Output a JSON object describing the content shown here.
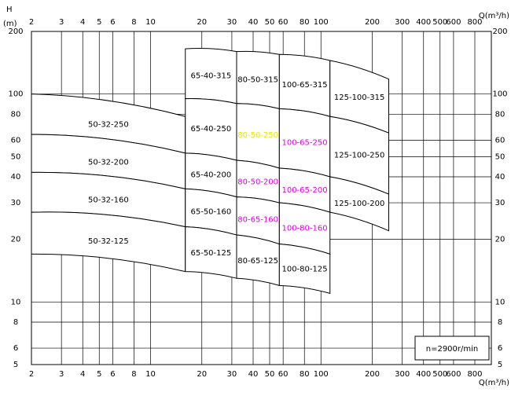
{
  "chart_data": {
    "type": "pump-range",
    "y_label": "H",
    "y_unit": "(m)",
    "x_label": "Q(m³/h)",
    "note": "n=2900r/min",
    "xscale": "log",
    "yscale": "log",
    "grid": true,
    "xlim": [
      2,
      1000
    ],
    "ylim": [
      5,
      200
    ],
    "xticks": [
      2,
      3,
      4,
      5,
      6,
      8,
      10,
      20,
      30,
      40,
      50,
      60,
      80,
      100,
      200,
      300,
      400,
      500,
      600,
      800
    ],
    "yticks": [
      5,
      6,
      8,
      10,
      20,
      30,
      40,
      50,
      60,
      80,
      100,
      200
    ],
    "regions": [
      {
        "name": "65-40-315",
        "color": "#000000",
        "q": [
          16,
          32
        ],
        "h_left": [
          95,
          165
        ],
        "h_right": [
          90,
          160
        ]
      },
      {
        "name": "80-50-315",
        "color": "#000000",
        "q": [
          32,
          57
        ],
        "h_left": [
          90,
          160
        ],
        "h_right": [
          85,
          155
        ]
      },
      {
        "name": "100-65-315",
        "color": "#000000",
        "q": [
          57,
          113
        ],
        "h_left": [
          85,
          155
        ],
        "h_right": [
          78,
          145
        ]
      },
      {
        "name": "125-100-315",
        "color": "#000000",
        "q": [
          113,
          250
        ],
        "h_left": [
          78,
          145
        ],
        "h_right": [
          65,
          118
        ]
      },
      {
        "name": "50-32-250",
        "color": "#000000",
        "q": [
          2,
          16
        ],
        "h_left": [
          64,
          100
        ],
        "h_right": [
          52,
          78
        ]
      },
      {
        "name": "65-40-250",
        "color": "#000000",
        "q": [
          16,
          32
        ],
        "h_left": [
          52,
          95
        ],
        "h_right": [
          48,
          90
        ]
      },
      {
        "name": "80-50-250",
        "color": "#e8e800",
        "q": [
          32,
          57
        ],
        "h_left": [
          48,
          90
        ],
        "h_right": [
          44,
          85
        ]
      },
      {
        "name": "100-65-250",
        "color": "#e000e0",
        "q": [
          57,
          113
        ],
        "h_left": [
          44,
          85
        ],
        "h_right": [
          40,
          78
        ]
      },
      {
        "name": "125-100-250",
        "color": "#000000",
        "q": [
          113,
          250
        ],
        "h_left": [
          40,
          78
        ],
        "h_right": [
          33,
          65
        ]
      },
      {
        "name": "50-32-200",
        "color": "#000000",
        "q": [
          2,
          16
        ],
        "h_left": [
          42,
          64
        ],
        "h_right": [
          35,
          52
        ]
      },
      {
        "name": "65-40-200",
        "color": "#000000",
        "q": [
          16,
          32
        ],
        "h_left": [
          35,
          52
        ],
        "h_right": [
          32,
          48
        ]
      },
      {
        "name": "80-50-200",
        "color": "#e000e0",
        "q": [
          32,
          57
        ],
        "h_left": [
          32,
          48
        ],
        "h_right": [
          30,
          44
        ]
      },
      {
        "name": "100-65-200",
        "color": "#e000e0",
        "q": [
          57,
          113
        ],
        "h_left": [
          30,
          44
        ],
        "h_right": [
          27,
          40
        ]
      },
      {
        "name": "125-100-200",
        "color": "#000000",
        "q": [
          113,
          250
        ],
        "h_left": [
          27,
          40
        ],
        "h_right": [
          22,
          33
        ]
      },
      {
        "name": "50-32-160",
        "color": "#000000",
        "q": [
          2,
          16
        ],
        "h_left": [
          27,
          42
        ],
        "h_right": [
          23,
          35
        ]
      },
      {
        "name": "65-50-160",
        "color": "#000000",
        "q": [
          16,
          32
        ],
        "h_left": [
          23,
          35
        ],
        "h_right": [
          21,
          32
        ]
      },
      {
        "name": "80-65-160",
        "color": "#e000e0",
        "q": [
          32,
          57
        ],
        "h_left": [
          21,
          32
        ],
        "h_right": [
          19,
          30
        ]
      },
      {
        "name": "100-80-160",
        "color": "#e000e0",
        "q": [
          57,
          113
        ],
        "h_left": [
          19,
          30
        ],
        "h_right": [
          17,
          27
        ]
      },
      {
        "name": "50-32-125",
        "color": "#000000",
        "q": [
          2,
          16
        ],
        "h_left": [
          17,
          27
        ],
        "h_right": [
          14,
          23
        ]
      },
      {
        "name": "65-50-125",
        "color": "#000000",
        "q": [
          16,
          32
        ],
        "h_left": [
          14,
          23
        ],
        "h_right": [
          13,
          21
        ]
      },
      {
        "name": "80-65-125",
        "color": "#000000",
        "q": [
          32,
          57
        ],
        "h_left": [
          13,
          21
        ],
        "h_right": [
          12,
          19
        ]
      },
      {
        "name": "100-80-125",
        "color": "#000000",
        "q": [
          57,
          113
        ],
        "h_left": [
          12,
          19
        ],
        "h_right": [
          11,
          17
        ]
      }
    ]
  }
}
